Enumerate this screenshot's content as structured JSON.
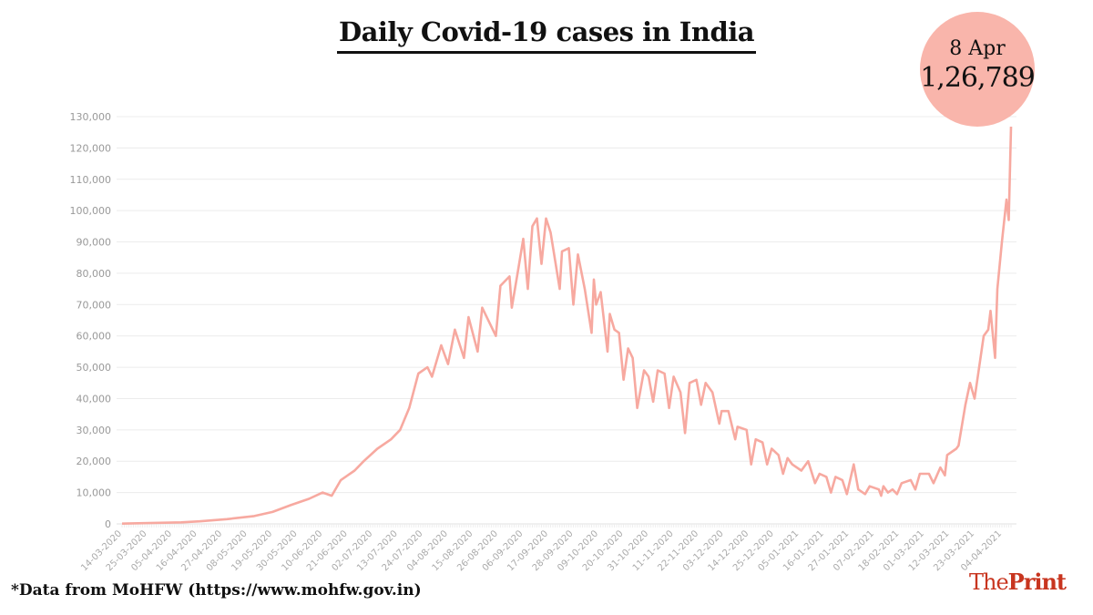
{
  "title": "Daily Covid-19 cases in India",
  "highlight": {
    "date": "8 Apr",
    "value": "1,26,789"
  },
  "footnote": "*Data from MoHFW (https://www.mohfw.gov.in)",
  "logo": {
    "part1": "The",
    "part2": "Print"
  },
  "colors": {
    "line": "#f7a9a0",
    "badge": "#f9b5ab",
    "logo": "#c8351f",
    "grid": "#ececec"
  },
  "chart_data": {
    "type": "line",
    "title": "Daily Covid-19 cases in India",
    "xlabel": "",
    "ylabel": "",
    "x_unit": "days since 14-03-2020",
    "xlim": [
      0,
      390
    ],
    "ylim": [
      0,
      130000
    ],
    "grid": true,
    "y_ticks": [
      0,
      10000,
      20000,
      30000,
      40000,
      50000,
      60000,
      70000,
      80000,
      90000,
      100000,
      110000,
      120000,
      130000
    ],
    "y_tick_labels": [
      "0",
      "10,000",
      "20,000",
      "30,000",
      "40,000",
      "50,000",
      "60,000",
      "70,000",
      "80,000",
      "90,000",
      "100,000",
      "110,000",
      "120,000",
      "130,000"
    ],
    "x_tick_days": [
      0,
      11,
      22,
      33,
      44,
      55,
      66,
      77,
      88,
      99,
      110,
      121,
      132,
      143,
      154,
      165,
      176,
      187,
      198,
      209,
      220,
      231,
      242,
      253,
      264,
      275,
      286,
      297,
      308,
      319,
      330,
      341,
      352,
      363,
      374,
      386
    ],
    "x_tick_labels": [
      "14-03-2020",
      "25-03-2020",
      "05-04-2020",
      "16-04-2020",
      "27-04-2020",
      "08-05-2020",
      "19-05-2020",
      "30-05-2020",
      "10-06-2020",
      "21-06-2020",
      "02-07-2020",
      "13-07-2020",
      "24-07-2020",
      "04-08-2020",
      "15-08-2020",
      "26-08-2020",
      "06-09-2020",
      "17-09-2020",
      "28-09-2020",
      "09-10-2020",
      "20-10-2020",
      "31-10-2020",
      "11-11-2020",
      "22-11-2020",
      "03-12-2020",
      "14-12-2020",
      "25-12-2020",
      "05-01-2021",
      "16-01-2021",
      "27-01-2021",
      "07-02-2021",
      "18-02-2021",
      "01-03-2021",
      "12-03-2021",
      "23-03-2021",
      "04-04-2021"
    ],
    "series": [
      {
        "name": "Daily cases",
        "points": [
          [
            0,
            100
          ],
          [
            26,
            500
          ],
          [
            34,
            800
          ],
          [
            46,
            1500
          ],
          [
            58,
            2500
          ],
          [
            66,
            3800
          ],
          [
            74,
            6000
          ],
          [
            82,
            8000
          ],
          [
            88,
            10000
          ],
          [
            92,
            9000
          ],
          [
            96,
            14000
          ],
          [
            102,
            17000
          ],
          [
            106,
            20000
          ],
          [
            112,
            24000
          ],
          [
            118,
            27000
          ],
          [
            122,
            30000
          ],
          [
            126,
            37000
          ],
          [
            130,
            48000
          ],
          [
            134,
            50000
          ],
          [
            136,
            47000
          ],
          [
            140,
            57000
          ],
          [
            143,
            51000
          ],
          [
            146,
            62000
          ],
          [
            150,
            53000
          ],
          [
            152,
            66000
          ],
          [
            156,
            55000
          ],
          [
            158,
            69000
          ],
          [
            164,
            60000
          ],
          [
            166,
            76000
          ],
          [
            170,
            79000
          ],
          [
            171,
            69000
          ],
          [
            174,
            82000
          ],
          [
            176,
            91000
          ],
          [
            178,
            75000
          ],
          [
            180,
            95000
          ],
          [
            182,
            97500
          ],
          [
            184,
            83000
          ],
          [
            186,
            97500
          ],
          [
            188,
            93000
          ],
          [
            192,
            75000
          ],
          [
            193,
            87000
          ],
          [
            196,
            88000
          ],
          [
            198,
            70000
          ],
          [
            200,
            86000
          ],
          [
            203,
            75000
          ],
          [
            206,
            61000
          ],
          [
            207,
            78000
          ],
          [
            208,
            70000
          ],
          [
            210,
            74000
          ],
          [
            213,
            55000
          ],
          [
            214,
            67000
          ],
          [
            216,
            62000
          ],
          [
            218,
            61000
          ],
          [
            220,
            46000
          ],
          [
            222,
            56000
          ],
          [
            224,
            53000
          ],
          [
            226,
            37000
          ],
          [
            229,
            49000
          ],
          [
            231,
            47000
          ],
          [
            233,
            39000
          ],
          [
            235,
            49000
          ],
          [
            238,
            48000
          ],
          [
            240,
            37000
          ],
          [
            242,
            47000
          ],
          [
            245,
            42000
          ],
          [
            247,
            29000
          ],
          [
            249,
            45000
          ],
          [
            252,
            46000
          ],
          [
            254,
            38000
          ],
          [
            256,
            45000
          ],
          [
            259,
            42000
          ],
          [
            262,
            32000
          ],
          [
            263,
            36000
          ],
          [
            266,
            36000
          ],
          [
            269,
            27000
          ],
          [
            270,
            31000
          ],
          [
            274,
            30000
          ],
          [
            276,
            19000
          ],
          [
            278,
            27000
          ],
          [
            281,
            26000
          ],
          [
            283,
            19000
          ],
          [
            285,
            24000
          ],
          [
            288,
            22000
          ],
          [
            290,
            16000
          ],
          [
            292,
            21000
          ],
          [
            294,
            19000
          ],
          [
            298,
            17000
          ],
          [
            301,
            20000
          ],
          [
            304,
            13000
          ],
          [
            306,
            16000
          ],
          [
            309,
            15000
          ],
          [
            311,
            10000
          ],
          [
            313,
            15000
          ],
          [
            316,
            14000
          ],
          [
            318,
            9500
          ],
          [
            321,
            19000
          ],
          [
            323,
            11000
          ],
          [
            326,
            9500
          ],
          [
            328,
            12000
          ],
          [
            332,
            11000
          ],
          [
            333,
            9000
          ],
          [
            334,
            12000
          ],
          [
            336,
            10000
          ],
          [
            338,
            11000
          ],
          [
            340,
            9500
          ],
          [
            342,
            13000
          ],
          [
            346,
            14000
          ],
          [
            348,
            11000
          ],
          [
            350,
            16000
          ],
          [
            354,
            16000
          ],
          [
            356,
            13000
          ],
          [
            359,
            18000
          ],
          [
            361,
            15500
          ],
          [
            362,
            22000
          ],
          [
            366,
            24000
          ],
          [
            367,
            25000
          ],
          [
            370,
            38000
          ],
          [
            372,
            45000
          ],
          [
            374,
            40000
          ],
          [
            378,
            60000
          ],
          [
            380,
            62000
          ],
          [
            381,
            68000
          ],
          [
            383,
            53000
          ],
          [
            384,
            75000
          ],
          [
            386,
            90000
          ],
          [
            388,
            103500
          ],
          [
            389,
            97000
          ],
          [
            390,
            126789
          ]
        ]
      }
    ],
    "annotation": {
      "label": "8 Apr",
      "value": "1,26,789"
    }
  }
}
